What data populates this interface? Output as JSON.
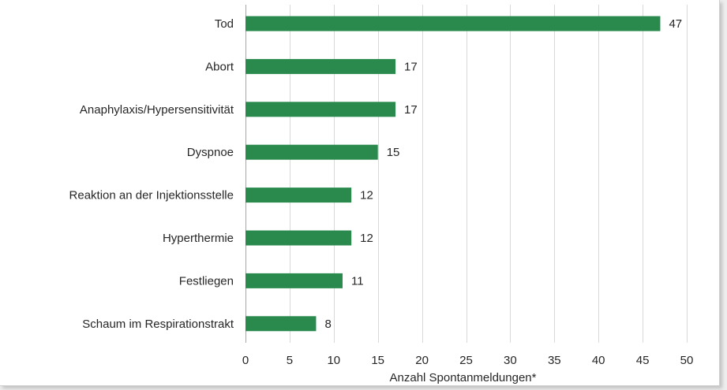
{
  "chart_data": {
    "type": "bar",
    "orientation": "horizontal",
    "categories": [
      "Tod",
      "Abort",
      "Anaphylaxis/Hypersensitivität",
      "Dyspnoe",
      "Reaktion an der Injektionsstelle",
      "Hyperthermie",
      "Festliegen",
      "Schaum im Respirationstrakt"
    ],
    "values": [
      47,
      17,
      17,
      15,
      12,
      12,
      11,
      8
    ],
    "xlabel": "Anzahl Spontanmeldungen*",
    "ylabel": "",
    "title": "",
    "xlim": [
      0,
      50
    ],
    "xticks": [
      "0",
      "5",
      "10",
      "15",
      "20",
      "25",
      "30",
      "35",
      "40",
      "45",
      "50"
    ],
    "grid": "vertical",
    "data_labels": true,
    "bar_color": "#2a8a4e"
  }
}
